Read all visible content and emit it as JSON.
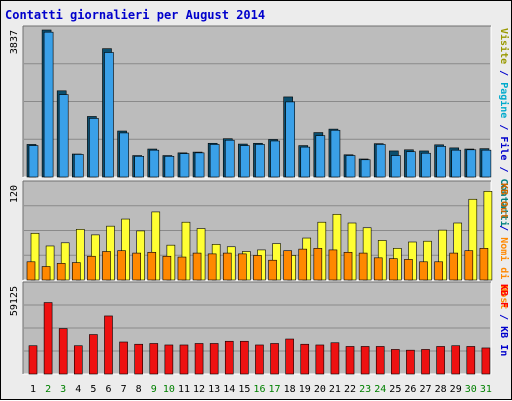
{
  "title": "Contatti giornalieri per August 2014",
  "colors": {
    "title": "#0000cc",
    "panel_bg": "#bcbcbc",
    "gridline": "#8a8a8a",
    "pages": "#3aa0e8",
    "pages_dark": "#1a3a9a",
    "files": "#3aa0e8",
    "files_dark": "#0b4e6e",
    "visits": "#ffff33",
    "sites": "#ff8800",
    "kbytes": "#ee1111",
    "label_files": "#008080",
    "label_pages": "#00aacc",
    "label_hits": "#00aacc",
    "label_visits": "#999900",
    "label_sites": "#ff8800",
    "label_kbout": "#cc6600",
    "label_kbin": "#0000cc",
    "label_kbf": "#ff0000",
    "weekend_day": "#008000",
    "weekday_day": "#000000"
  },
  "right_labels": {
    "panel1": [
      {
        "text": "Contatti",
        "color_key": "label_files"
      },
      {
        "text": " / ",
        "color_key": "label_kbin"
      },
      {
        "text": "File",
        "color_key": "label_kbin"
      },
      {
        "text": " / ",
        "color_key": "label_kbin"
      },
      {
        "text": "Pagine",
        "color_key": "label_pages"
      },
      {
        "text": " / ",
        "color_key": "label_kbin"
      },
      {
        "text": "Visite",
        "color_key": "label_visits"
      }
    ],
    "panel2": [
      {
        "text": "Nomi di Host",
        "color_key": "label_sites"
      },
      {
        "text": " / ",
        "color_key": "label_kbin"
      },
      {
        "text": "KB Out",
        "color_key": "label_kbout"
      }
    ],
    "panel3": [
      {
        "text": "KB In",
        "color_key": "label_kbin"
      },
      {
        "text": " / ",
        "color_key": "label_kbin"
      },
      {
        "text": "KB F",
        "color_key": "label_kbf"
      }
    ]
  },
  "chart_data": [
    {
      "type": "bar",
      "title": "Contatti giornalieri per August 2014",
      "ylabel": "3837",
      "ylim": [
        0,
        3837
      ],
      "grid": true,
      "categories": [
        "1",
        "2",
        "3",
        "4",
        "5",
        "6",
        "7",
        "8",
        "9",
        "10",
        "11",
        "12",
        "13",
        "14",
        "15",
        "16",
        "17",
        "18",
        "19",
        "20",
        "21",
        "22",
        "23",
        "24",
        "25",
        "26",
        "27",
        "28",
        "29",
        "30",
        "31"
      ],
      "weekend_days": [
        "2",
        "3",
        "9",
        "10",
        "16",
        "17",
        "23",
        "24",
        "30",
        "31"
      ],
      "series": [
        {
          "name": "Contatti",
          "values": [
            850,
            3837,
            2250,
            600,
            1580,
            3350,
            1200,
            560,
            730,
            560,
            630,
            650,
            880,
            1000,
            860,
            880,
            980,
            2090,
            820,
            1160,
            1250,
            580,
            470,
            870,
            680,
            710,
            680,
            840,
            760,
            730,
            740
          ]
        },
        {
          "name": "File",
          "values": [
            820,
            3780,
            2150,
            590,
            1530,
            3250,
            1150,
            540,
            700,
            540,
            610,
            630,
            850,
            960,
            820,
            850,
            940,
            1960,
            780,
            1080,
            1220,
            560,
            450,
            850,
            560,
            660,
            620,
            800,
            700,
            710,
            700
          ]
        }
      ]
    },
    {
      "type": "bar",
      "ylabel": "120",
      "ylim": [
        0,
        120
      ],
      "grid": true,
      "categories": [
        "1",
        "2",
        "3",
        "4",
        "5",
        "6",
        "7",
        "8",
        "9",
        "10",
        "11",
        "12",
        "13",
        "14",
        "15",
        "16",
        "17",
        "18",
        "19",
        "20",
        "21",
        "22",
        "23",
        "24",
        "25",
        "26",
        "27",
        "28",
        "29",
        "30",
        "31"
      ],
      "series": [
        {
          "name": "Visite",
          "values": [
            59,
            43,
            47,
            64,
            57,
            68,
            77,
            62,
            86,
            44,
            73,
            65,
            45,
            42,
            36,
            38,
            46,
            31,
            53,
            73,
            83,
            72,
            66,
            50,
            40,
            48,
            49,
            63,
            72,
            102,
            112
          ]
        },
        {
          "name": "Nomi di Host",
          "values": [
            23,
            17,
            21,
            22,
            30,
            36,
            37,
            34,
            35,
            30,
            29,
            34,
            33,
            34,
            33,
            31,
            25,
            37,
            39,
            40,
            38,
            35,
            34,
            28,
            27,
            26,
            23,
            23,
            34,
            37,
            40
          ]
        }
      ]
    },
    {
      "type": "bar",
      "ylabel": "59125",
      "ylim": [
        0,
        59125
      ],
      "grid": true,
      "categories": [
        "1",
        "2",
        "3",
        "4",
        "5",
        "6",
        "7",
        "8",
        "9",
        "10",
        "11",
        "12",
        "13",
        "14",
        "15",
        "16",
        "17",
        "18",
        "19",
        "20",
        "21",
        "22",
        "23",
        "24",
        "25",
        "26",
        "27",
        "28",
        "29",
        "30",
        "31"
      ],
      "series": [
        {
          "name": "KB F",
          "values": [
            19000,
            48000,
            30500,
            19000,
            26500,
            39000,
            21500,
            20000,
            20500,
            19500,
            19500,
            20500,
            20500,
            22000,
            22000,
            19500,
            20500,
            23500,
            20000,
            19500,
            21000,
            18500,
            18500,
            18500,
            16500,
            16000,
            16500,
            18500,
            19000,
            18500,
            17500
          ]
        }
      ]
    }
  ]
}
